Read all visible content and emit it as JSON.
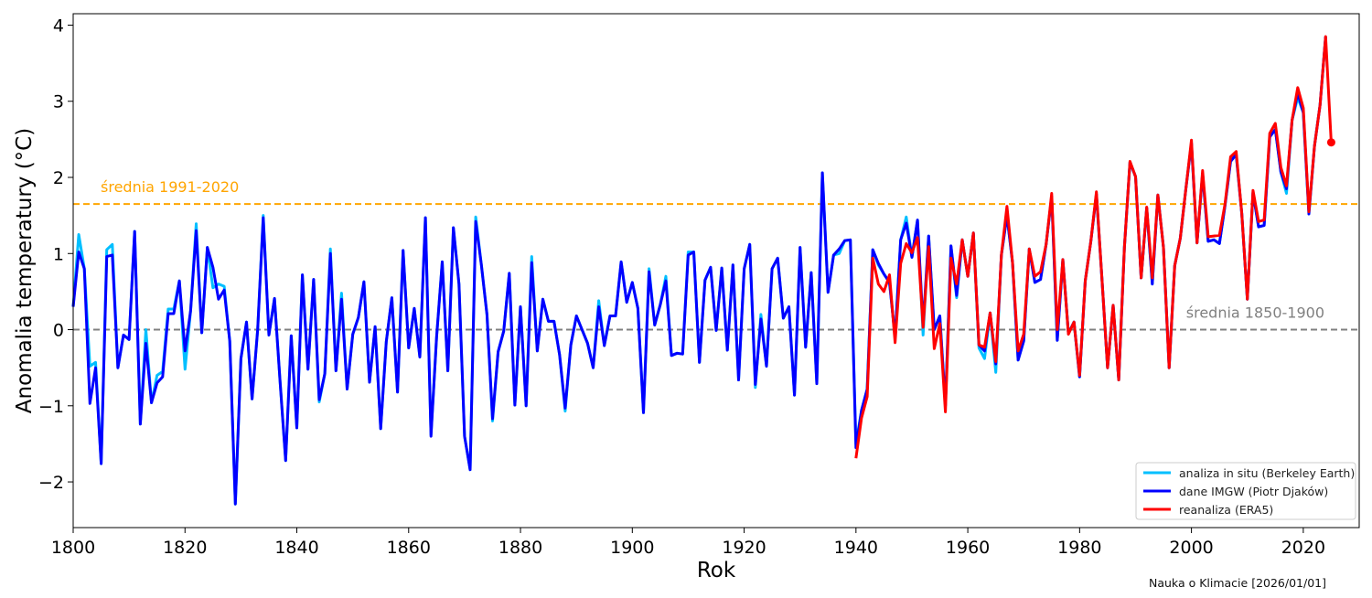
{
  "chart_data": {
    "type": "line",
    "title": "",
    "xlabel": "Rok",
    "ylabel": "Anomalia temperatury (°C)",
    "xlim": [
      1800,
      2030
    ],
    "ylim": [
      -2.6,
      4.15
    ],
    "xticks": [
      1800,
      1820,
      1840,
      1860,
      1880,
      1900,
      1920,
      1940,
      1960,
      1980,
      2000,
      2020
    ],
    "yticks": [
      -2,
      -1,
      0,
      1,
      2,
      3,
      4
    ],
    "ytick_labels": [
      "−2",
      "−1",
      "0",
      "1",
      "2",
      "3",
      "4"
    ],
    "grid": false,
    "legend_position": "bottom-right",
    "reference_lines": [
      {
        "label": "średnia 1991-2020",
        "value": 1.65,
        "color": "#FFA500"
      },
      {
        "label": "średnia 1850-1900",
        "value": 0.0,
        "color": "#808080"
      }
    ],
    "series": [
      {
        "name": "analiza in situ (Berkeley Earth)",
        "color": "#00BFFF",
        "start_year": 1800,
        "values": [
          0.3,
          1.25,
          0.8,
          -0.48,
          -0.43,
          -1.76,
          1.05,
          1.12,
          -0.5,
          -0.07,
          -0.13,
          1.29,
          -1.24,
          0.0,
          -0.96,
          -0.6,
          -0.55,
          0.27,
          0.27,
          0.64,
          -0.52,
          0.25,
          1.39,
          -0.04,
          1.08,
          0.55,
          0.6,
          0.57,
          -0.15,
          -2.29,
          -0.38,
          0.1,
          -0.91,
          0.0,
          1.5,
          -0.07,
          0.41,
          -0.68,
          -1.72,
          -0.08,
          -1.29,
          0.72,
          -0.52,
          0.66,
          -0.95,
          -0.58,
          1.06,
          -0.54,
          0.48,
          -0.78,
          -0.06,
          0.16,
          0.63,
          -0.69,
          0.04,
          -1.3,
          -0.16,
          0.42,
          -0.82,
          1.04,
          -0.24,
          0.28,
          -0.36,
          1.47,
          -1.38,
          -0.1,
          0.89,
          -0.54,
          1.34,
          0.6,
          -1.4,
          -1.84,
          1.48,
          0.85,
          0.2,
          -1.2,
          -0.29,
          -0.02,
          0.74,
          -0.99,
          0.3,
          -1.0,
          0.96,
          -0.28,
          0.4,
          0.11,
          0.11,
          -0.33,
          -1.07,
          -0.2,
          0.18,
          0.0,
          -0.18,
          -0.5,
          0.38,
          -0.21,
          0.18,
          0.18,
          0.89,
          0.36,
          0.62,
          0.28,
          -1.09,
          0.8,
          0.06,
          0.33,
          0.7,
          -0.34,
          -0.31,
          -0.32,
          1.02,
          1.02,
          -0.43,
          0.65,
          0.82,
          -0.01,
          0.81,
          -0.27,
          0.85,
          -0.66,
          0.8,
          1.12,
          -0.76,
          0.2,
          -0.48,
          0.8,
          0.94,
          0.15,
          0.3,
          -0.86,
          1.08,
          -0.23,
          0.75,
          -0.71,
          2.06,
          0.49,
          0.98,
          1.0,
          1.17,
          1.18,
          -1.5,
          -1.06,
          -0.78,
          1.05,
          0.85,
          0.73,
          0.62,
          -0.1,
          1.18,
          1.48,
          0.95,
          1.44,
          -0.07,
          1.23,
          0.0,
          0.18,
          -1.0,
          1.1,
          0.42,
          1.18,
          0.7,
          1.27,
          -0.24,
          -0.38,
          0.22,
          -0.56,
          0.98,
          1.5,
          0.88,
          -0.4,
          -0.15,
          1.06,
          0.62,
          0.66,
          1.12,
          1.75,
          -0.14,
          0.92,
          -0.05,
          0.1,
          -0.62,
          0.64,
          1.16,
          1.78,
          0.66,
          -0.5,
          0.32,
          -0.66,
          1.08,
          2.2,
          2.01,
          0.68,
          1.6,
          0.6,
          1.77,
          1.08,
          -0.5,
          0.84,
          1.2,
          1.85,
          2.45,
          1.14,
          2.05,
          1.16,
          1.18,
          1.13,
          1.63,
          2.21,
          2.3,
          1.53,
          0.4,
          1.8,
          1.35,
          1.37,
          2.53,
          2.63,
          2.07,
          1.79,
          2.75,
          3.05,
          2.85,
          1.52,
          2.41,
          2.95,
          3.85
        ]
      },
      {
        "name": "dane IMGW (Piotr Djaków)",
        "color": "#0000FF",
        "start_year": 1800,
        "values": [
          0.3,
          1.02,
          0.8,
          -0.97,
          -0.5,
          -1.76,
          0.96,
          0.98,
          -0.5,
          -0.07,
          -0.13,
          1.29,
          -1.24,
          -0.18,
          -0.96,
          -0.7,
          -0.62,
          0.21,
          0.21,
          0.64,
          -0.28,
          0.25,
          1.3,
          -0.04,
          1.08,
          0.82,
          0.4,
          0.52,
          -0.15,
          -2.29,
          -0.38,
          0.1,
          -0.91,
          0.0,
          1.47,
          -0.07,
          0.41,
          -0.68,
          -1.72,
          -0.08,
          -1.29,
          0.72,
          -0.52,
          0.66,
          -0.92,
          -0.58,
          1.0,
          -0.54,
          0.4,
          -0.78,
          -0.06,
          0.16,
          0.63,
          -0.69,
          0.04,
          -1.3,
          -0.16,
          0.42,
          -0.82,
          1.04,
          -0.24,
          0.28,
          -0.36,
          1.47,
          -1.4,
          -0.1,
          0.89,
          -0.54,
          1.34,
          0.6,
          -1.4,
          -1.84,
          1.42,
          0.85,
          0.2,
          -1.17,
          -0.29,
          -0.02,
          0.74,
          -0.99,
          0.3,
          -1.0,
          0.88,
          -0.28,
          0.4,
          0.11,
          0.11,
          -0.33,
          -1.03,
          -0.2,
          0.18,
          0.0,
          -0.18,
          -0.5,
          0.3,
          -0.21,
          0.18,
          0.18,
          0.89,
          0.36,
          0.62,
          0.28,
          -1.09,
          0.76,
          0.06,
          0.33,
          0.64,
          -0.34,
          -0.31,
          -0.32,
          0.98,
          1.02,
          -0.43,
          0.65,
          0.82,
          -0.01,
          0.81,
          -0.27,
          0.85,
          -0.66,
          0.8,
          1.12,
          -0.72,
          0.14,
          -0.48,
          0.8,
          0.94,
          0.15,
          0.3,
          -0.86,
          1.08,
          -0.23,
          0.75,
          -0.71,
          2.06,
          0.49,
          0.98,
          1.06,
          1.17,
          1.18,
          -1.55,
          -1.06,
          -0.78,
          1.05,
          0.87,
          0.73,
          0.62,
          -0.1,
          1.18,
          1.4,
          0.95,
          1.44,
          0.05,
          1.23,
          0.0,
          0.18,
          -1.0,
          1.1,
          0.45,
          1.18,
          0.7,
          1.27,
          -0.2,
          -0.28,
          0.22,
          -0.45,
          0.98,
          1.5,
          0.88,
          -0.4,
          -0.15,
          1.06,
          0.62,
          0.66,
          1.12,
          1.75,
          -0.14,
          0.92,
          -0.05,
          0.1,
          -0.62,
          0.64,
          1.16,
          1.78,
          0.66,
          -0.5,
          0.32,
          -0.66,
          1.08,
          2.2,
          2.01,
          0.68,
          1.6,
          0.6,
          1.77,
          1.08,
          -0.5,
          0.84,
          1.2,
          1.85,
          2.45,
          1.14,
          2.05,
          1.16,
          1.18,
          1.13,
          1.63,
          2.21,
          2.3,
          1.53,
          0.4,
          1.8,
          1.35,
          1.37,
          2.53,
          2.63,
          2.07,
          1.85,
          2.75,
          3.11,
          2.85,
          1.52,
          2.41,
          2.95,
          3.85
        ]
      },
      {
        "name": "reanaliza (ERA5)",
        "color": "#FF0000",
        "start_year": 1940,
        "values": [
          -1.69,
          -1.16,
          -0.88,
          0.94,
          0.6,
          0.5,
          0.72,
          -0.17,
          0.87,
          1.13,
          1.01,
          1.21,
          0.03,
          1.09,
          -0.25,
          0.08,
          -1.08,
          0.94,
          0.6,
          1.18,
          0.7,
          1.27,
          -0.2,
          -0.23,
          0.22,
          -0.42,
          0.98,
          1.62,
          0.88,
          -0.28,
          -0.06,
          1.06,
          0.7,
          0.76,
          1.12,
          1.79,
          0.0,
          0.92,
          -0.06,
          0.1,
          -0.6,
          0.64,
          1.16,
          1.81,
          0.66,
          -0.5,
          0.32,
          -0.66,
          1.08,
          2.21,
          2.01,
          0.68,
          1.61,
          0.68,
          1.77,
          1.08,
          -0.5,
          0.84,
          1.2,
          1.85,
          2.49,
          1.14,
          2.09,
          1.22,
          1.23,
          1.24,
          1.65,
          2.27,
          2.34,
          1.53,
          0.4,
          1.83,
          1.42,
          1.44,
          2.58,
          2.71,
          2.13,
          1.89,
          2.75,
          3.18,
          2.91,
          1.55,
          2.41,
          2.95,
          3.85,
          2.46
        ],
        "last_point_marker": true
      }
    ]
  },
  "footer": {
    "credit": "Nauka o Klimacie [2026/01/01]"
  }
}
